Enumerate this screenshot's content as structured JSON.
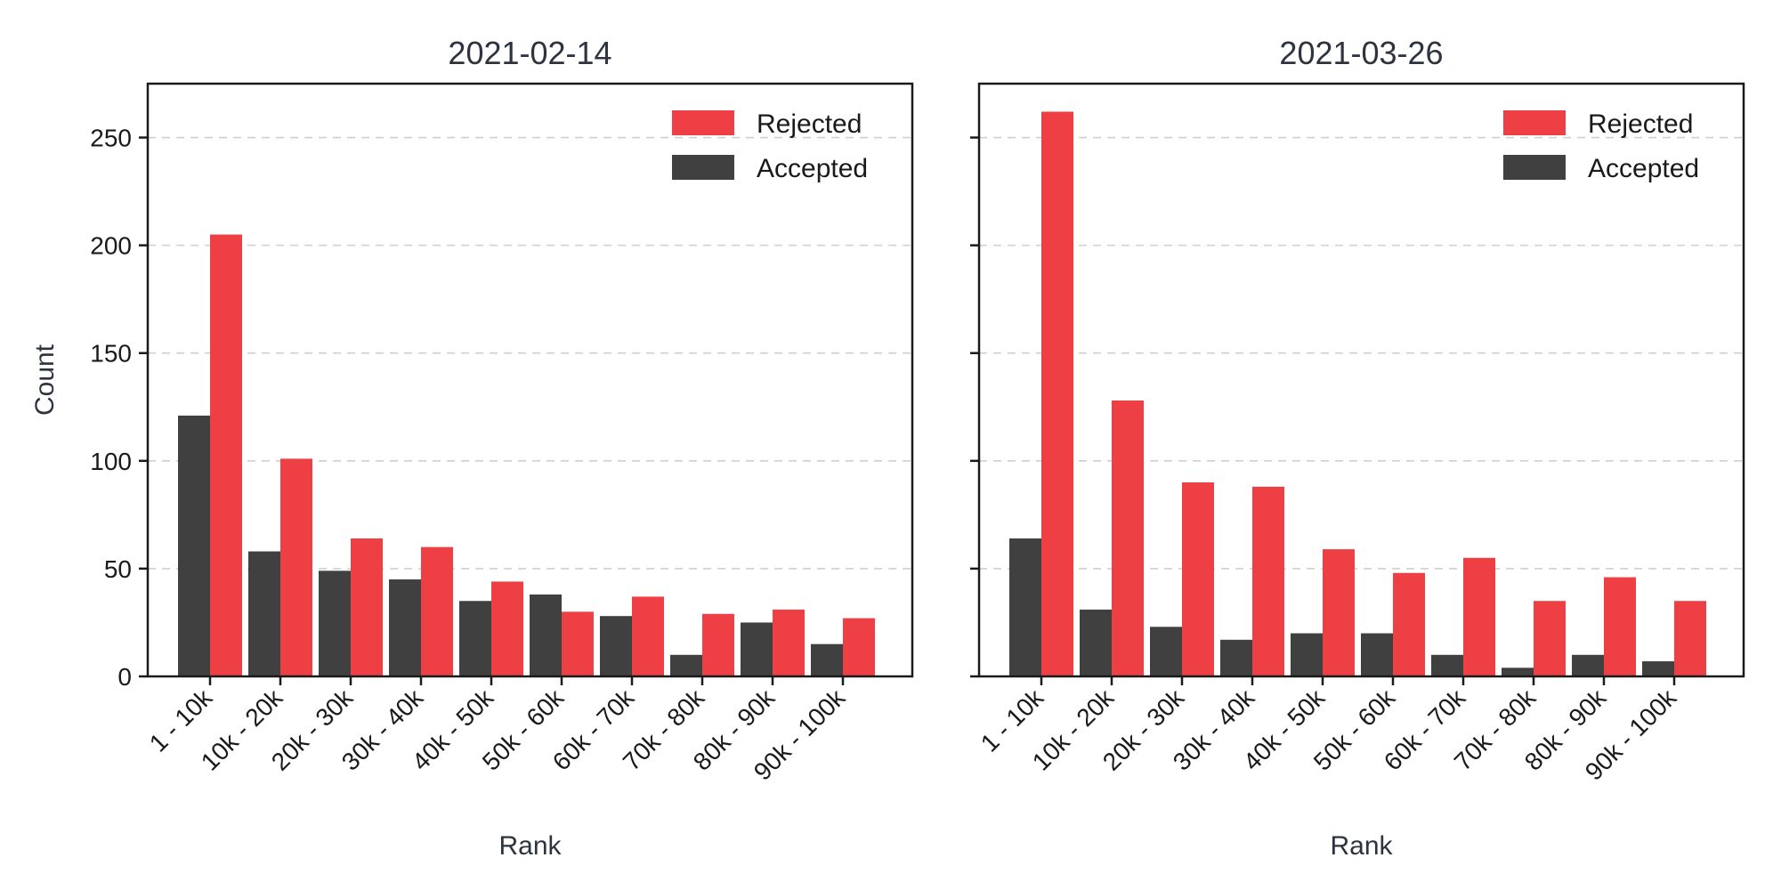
{
  "chart_data": [
    {
      "type": "bar",
      "title": "2021-02-14",
      "xlabel": "Rank",
      "ylabel": "Count",
      "ylim": [
        0,
        275
      ],
      "yticks": [
        0,
        50,
        100,
        150,
        200,
        250
      ],
      "grid": "y-dashed",
      "legend": "top-right",
      "categories": [
        "1 - 10k",
        "10k - 20k",
        "20k - 30k",
        "30k - 40k",
        "40k - 50k",
        "50k - 60k",
        "60k - 70k",
        "70k - 80k",
        "80k - 90k",
        "90k - 100k"
      ],
      "series": [
        {
          "name": "Accepted",
          "color": "#404040",
          "values": [
            121,
            58,
            49,
            45,
            35,
            38,
            28,
            10,
            25,
            15
          ]
        },
        {
          "name": "Rejected",
          "color": "#ee4044",
          "values": [
            205,
            101,
            64,
            60,
            44,
            30,
            37,
            29,
            31,
            27
          ]
        }
      ],
      "legend_order": [
        1,
        0
      ]
    },
    {
      "type": "bar",
      "title": "2021-03-26",
      "xlabel": "Rank",
      "ylabel": "",
      "ylim": [
        0,
        275
      ],
      "yticks": [
        0,
        50,
        100,
        150,
        200,
        250
      ],
      "grid": "y-dashed",
      "legend": "top-right",
      "categories": [
        "1 - 10k",
        "10k - 20k",
        "20k - 30k",
        "30k - 40k",
        "40k - 50k",
        "50k - 60k",
        "60k - 70k",
        "70k - 80k",
        "80k - 90k",
        "90k - 100k"
      ],
      "series": [
        {
          "name": "Accepted",
          "color": "#404040",
          "values": [
            64,
            31,
            23,
            17,
            20,
            20,
            10,
            4,
            10,
            7
          ]
        },
        {
          "name": "Rejected",
          "color": "#ee4044",
          "values": [
            262,
            128,
            90,
            88,
            59,
            48,
            55,
            35,
            46,
            35
          ]
        }
      ],
      "legend_order": [
        1,
        0
      ]
    }
  ]
}
